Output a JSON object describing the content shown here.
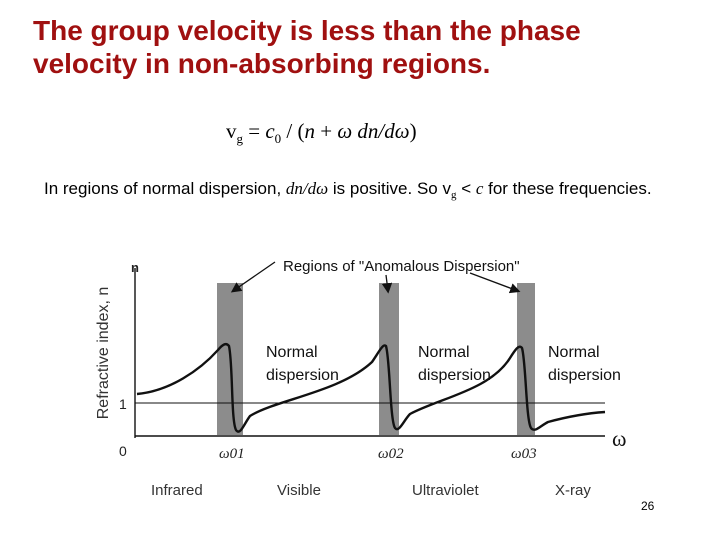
{
  "slide": {
    "title_line1": "The group velocity is less than the phase",
    "title_line2": "velocity in non-absorbing regions.",
    "equation": {
      "v": "v",
      "g": "g",
      "eq": " = ",
      "c": "c",
      "zero": "0",
      "rest1": " / (",
      "n": "n",
      "plus": " + ",
      "omega": "ω",
      "dn": " dn/d",
      "omega2": "ω",
      "close": ")"
    },
    "paragraph": {
      "part1": "In regions of normal dispersion, ",
      "deriv": "dn/dω",
      "part2": " is positive.  So v",
      "sub_g": "g",
      "part3": " < ",
      "c": "c",
      "part4": " for these frequencies."
    },
    "page_number": "26"
  },
  "figure": {
    "y_axis_label": "Refractive index, n",
    "y_axis_symbol": "n",
    "tick_one": "1",
    "tick_zero": "0",
    "anomalous_label": "Regions of \"Anomalous Dispersion\"",
    "normal_line1": "Normal",
    "normal_line2": "dispersion",
    "omega_01": "ω01",
    "omega_02": "ω02",
    "omega_03": "ω03",
    "omega_axis": "ω",
    "regions": [
      "Infrared",
      "Visible",
      "Ultraviolet",
      "X-ray"
    ],
    "colors": {
      "band": "#8c8c8c",
      "curve": "#111111",
      "title": "#a01010"
    }
  }
}
